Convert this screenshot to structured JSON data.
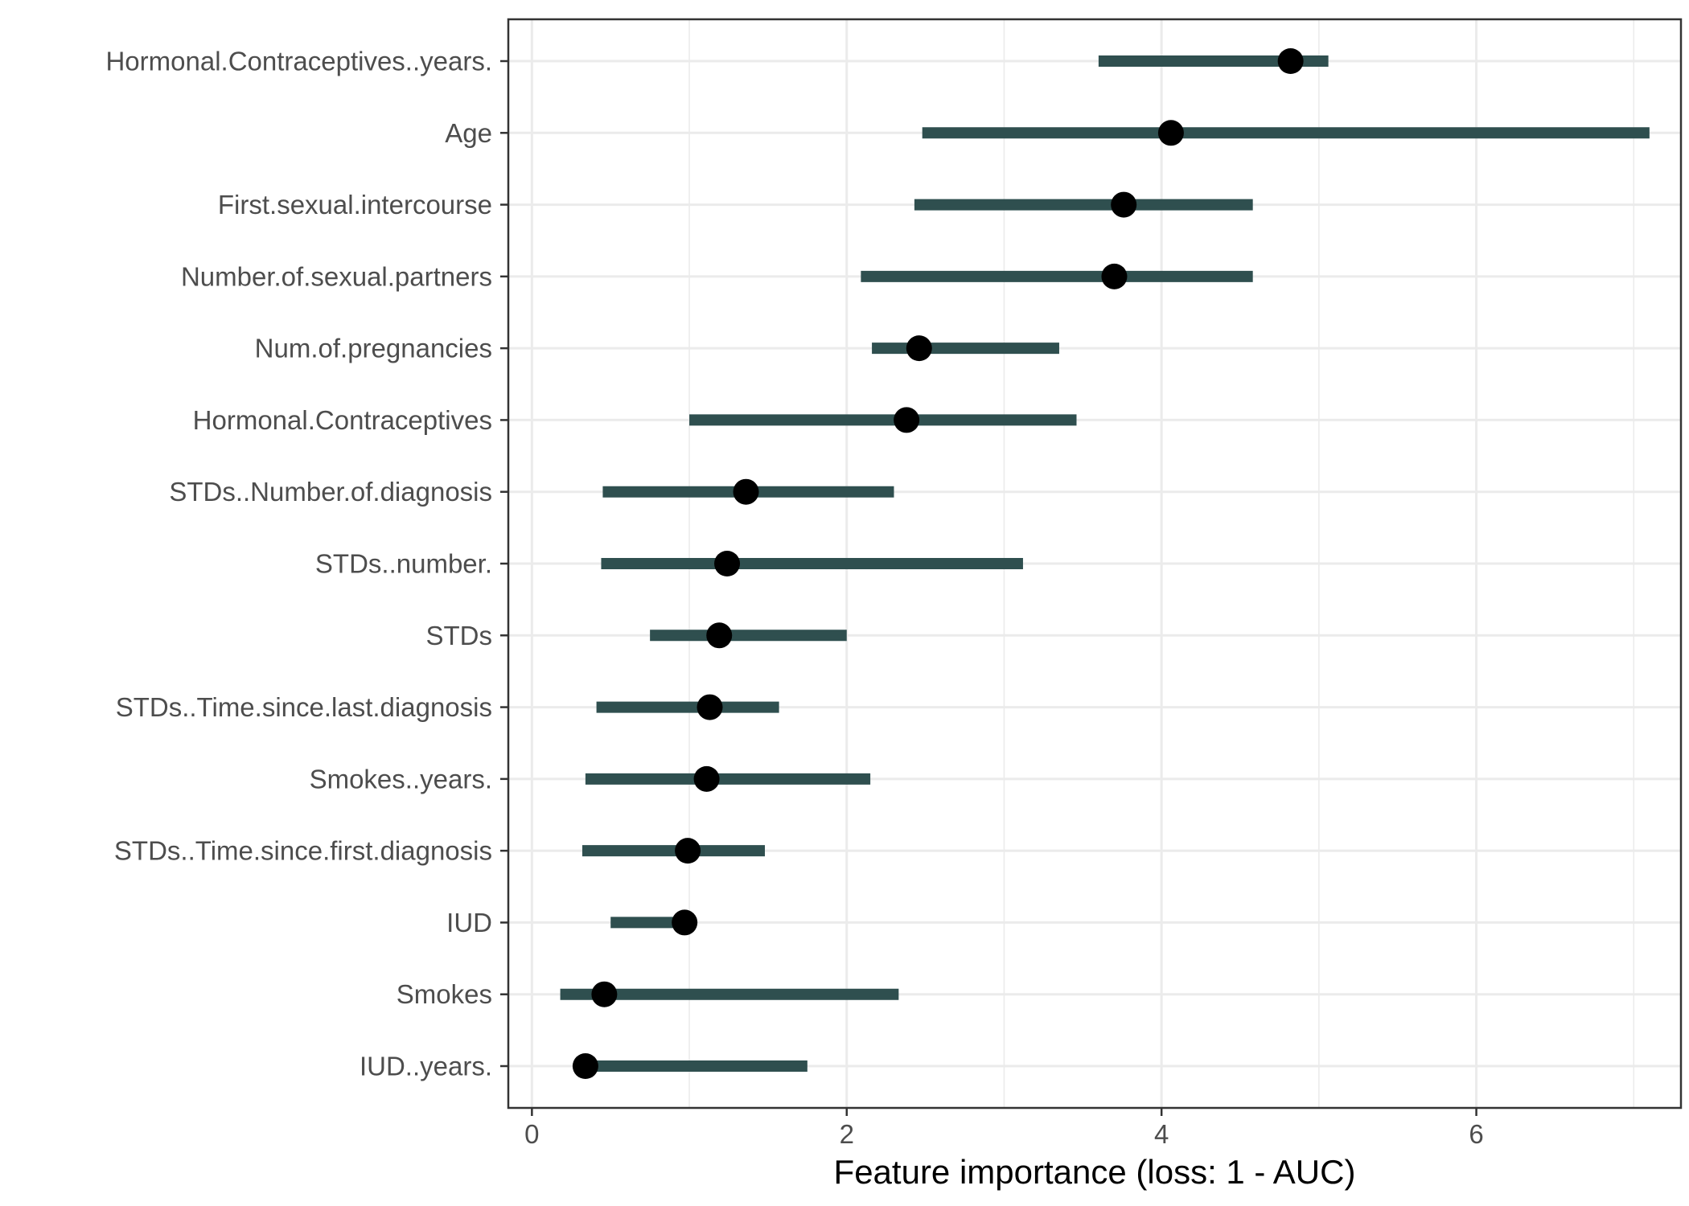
{
  "chart_data": {
    "type": "dot-interval",
    "xlabel": "Feature importance (loss: 1 - AUC)",
    "ylabel": "",
    "xlim": [
      -0.15,
      7.3
    ],
    "x_ticks": [
      0,
      2,
      4,
      6
    ],
    "x_tick_labels": [
      "0",
      "2",
      "4",
      "6"
    ],
    "grid": true,
    "colors": {
      "interval": "#2f4f4f",
      "point": "#000000",
      "grid": "#ebebeb",
      "panel_border": "#333333"
    },
    "features": [
      {
        "label": "Hormonal.Contraceptives..years.",
        "lower": 3.6,
        "importance": 4.82,
        "upper": 5.06
      },
      {
        "label": "Age",
        "lower": 2.48,
        "importance": 4.06,
        "upper": 7.1
      },
      {
        "label": "First.sexual.intercourse",
        "lower": 2.43,
        "importance": 3.76,
        "upper": 4.58
      },
      {
        "label": "Number.of.sexual.partners",
        "lower": 2.09,
        "importance": 3.7,
        "upper": 4.58
      },
      {
        "label": "Num.of.pregnancies",
        "lower": 2.16,
        "importance": 2.46,
        "upper": 3.35
      },
      {
        "label": "Hormonal.Contraceptives",
        "lower": 1.0,
        "importance": 2.38,
        "upper": 3.46
      },
      {
        "label": "STDs..Number.of.diagnosis",
        "lower": 0.45,
        "importance": 1.36,
        "upper": 2.3
      },
      {
        "label": "STDs..number.",
        "lower": 0.44,
        "importance": 1.24,
        "upper": 3.12
      },
      {
        "label": "STDs",
        "lower": 0.75,
        "importance": 1.19,
        "upper": 2.0
      },
      {
        "label": "STDs..Time.since.last.diagnosis",
        "lower": 0.41,
        "importance": 1.13,
        "upper": 1.57
      },
      {
        "label": "Smokes..years.",
        "lower": 0.34,
        "importance": 1.11,
        "upper": 2.15
      },
      {
        "label": "STDs..Time.since.first.diagnosis",
        "lower": 0.32,
        "importance": 0.99,
        "upper": 1.48
      },
      {
        "label": "IUD",
        "lower": 0.5,
        "importance": 0.97,
        "upper": 0.97
      },
      {
        "label": "Smokes",
        "lower": 0.18,
        "importance": 0.46,
        "upper": 2.33
      },
      {
        "label": "IUD..years.",
        "lower": 0.34,
        "importance": 0.34,
        "upper": 1.75
      }
    ]
  }
}
